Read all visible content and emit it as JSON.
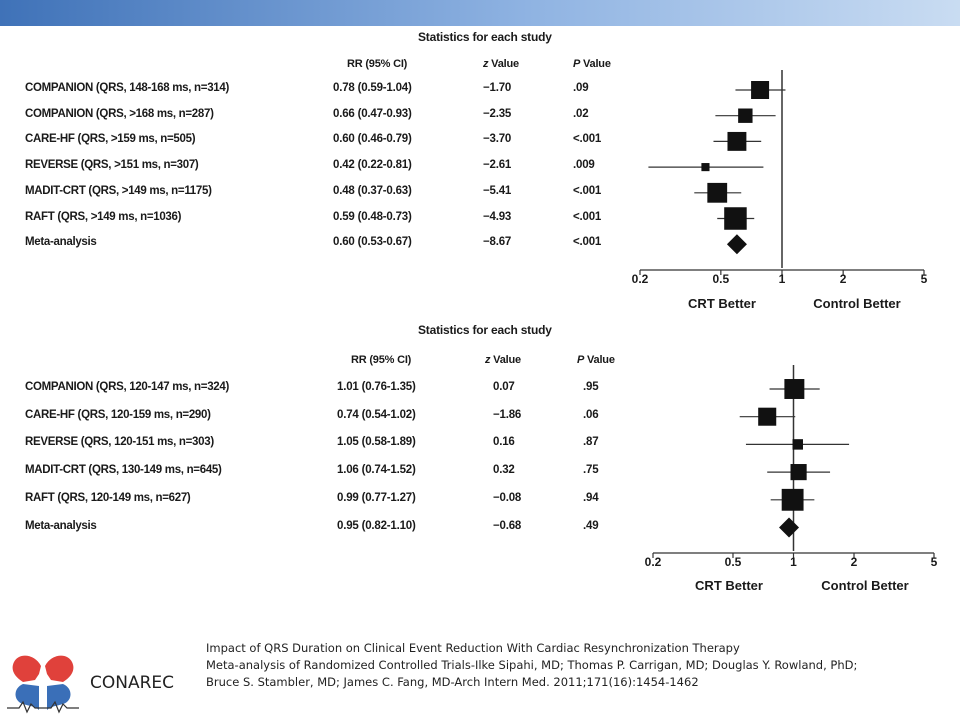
{
  "caption": {
    "line1": "Impact of QRS Duration on Clinical Event Reduction With Cardiac Resynchronization Therapy",
    "line2": "Meta-analysis of Randomized Controlled Trials-Ilke Sipahi, MD; Thomas P. Carrigan, MD; Douglas Y. Rowland, PhD;",
    "line3": "Bruce S. Stambler, MD; James C. Fang, MD-Arch Intern Med. 2011;171(16):1454-1462"
  },
  "brand": {
    "name": "CONAREC",
    "colors": {
      "red": "#e0413b",
      "blue": "#3a6fb8",
      "topbar": "#3f72b8"
    }
  },
  "chart_data": [
    {
      "type": "forest",
      "title": "Statistics for each study",
      "columns": {
        "rr": "RR (95% CI)",
        "z_italic": "z",
        "z_rest": " Value",
        "p_italic": "P",
        "p_rest": " Value"
      },
      "xscale": "log",
      "xlim": [
        0.2,
        5
      ],
      "ticks": [
        "0.2",
        "0.5",
        "1",
        "2",
        "5"
      ],
      "xlabel_left": "CRT Better",
      "xlabel_right": "Control Better",
      "rows": [
        {
          "label": "COMPANION (QRS, 148-168 ms, n=314)",
          "rr_text": "0.78 (0.59-1.04)",
          "z": "−1.70",
          "p": ".09",
          "rr": 0.78,
          "lo": 0.59,
          "hi": 1.04,
          "weight": 1.0
        },
        {
          "label": "COMPANION (QRS, >168 ms, n=287)",
          "rr_text": "0.66 (0.47-0.93)",
          "z": "−2.35",
          "p": ".02",
          "rr": 0.66,
          "lo": 0.47,
          "hi": 0.93,
          "weight": 0.8
        },
        {
          "label": "CARE-HF (QRS, >159 ms, n=505)",
          "rr_text": "0.60 (0.46-0.79)",
          "z": "−3.70",
          "p": "<.001",
          "rr": 0.6,
          "lo": 0.46,
          "hi": 0.79,
          "weight": 1.05
        },
        {
          "label": "REVERSE (QRS, >151 ms, n=307)",
          "rr_text": "0.42 (0.22-0.81)",
          "z": "−2.61",
          "p": ".009",
          "rr": 0.42,
          "lo": 0.22,
          "hi": 0.81,
          "weight": 0.45
        },
        {
          "label": "MADIT-CRT (QRS, >149 ms, n=1175)",
          "rr_text": "0.48 (0.37-0.63)",
          "z": "−5.41",
          "p": "<.001",
          "rr": 0.48,
          "lo": 0.37,
          "hi": 0.63,
          "weight": 1.1
        },
        {
          "label": "RAFT (QRS, >149 ms, n=1036)",
          "rr_text": "0.59 (0.48-0.73)",
          "z": "−4.93",
          "p": "<.001",
          "rr": 0.59,
          "lo": 0.48,
          "hi": 0.73,
          "weight": 1.25
        },
        {
          "label": "Meta-analysis",
          "rr_text": "0.60 (0.53-0.67)",
          "z": "−8.67",
          "p": "<.001",
          "rr": 0.6,
          "lo": 0.53,
          "hi": 0.67,
          "weight": 1.0,
          "summary": true
        }
      ]
    },
    {
      "type": "forest",
      "title": "Statistics for each study",
      "columns": {
        "rr": "RR (95% CI)",
        "z_italic": "z",
        "z_rest": " Value",
        "p_italic": "P",
        "p_rest": " Value"
      },
      "xscale": "log",
      "xlim": [
        0.2,
        5
      ],
      "ticks": [
        "0.2",
        "0.5",
        "1",
        "2",
        "5"
      ],
      "xlabel_left": "CRT Better",
      "xlabel_right": "Control Better",
      "rows": [
        {
          "label": "COMPANION (QRS, 120-147 ms, n=324)",
          "rr_text": "1.01 (0.76-1.35)",
          "z": "0.07",
          "p": ".95",
          "rr": 1.01,
          "lo": 0.76,
          "hi": 1.35,
          "weight": 1.05
        },
        {
          "label": "CARE-HF (QRS, 120-159 ms, n=290)",
          "rr_text": "0.74 (0.54-1.02)",
          "z": "−1.86",
          "p": ".06",
          "rr": 0.74,
          "lo": 0.54,
          "hi": 1.02,
          "weight": 0.95
        },
        {
          "label": "REVERSE (QRS, 120-151 ms, n=303)",
          "rr_text": "1.05 (0.58-1.89)",
          "z": "0.16",
          "p": ".87",
          "rr": 1.05,
          "lo": 0.58,
          "hi": 1.89,
          "weight": 0.55
        },
        {
          "label": "MADIT-CRT (QRS, 130-149 ms, n=645)",
          "rr_text": "1.06 (0.74-1.52)",
          "z": "0.32",
          "p": ".75",
          "rr": 1.06,
          "lo": 0.74,
          "hi": 1.52,
          "weight": 0.85
        },
        {
          "label": "RAFT (QRS, 120-149 ms, n=627)",
          "rr_text": "0.99 (0.77-1.27)",
          "z": "−0.08",
          "p": ".94",
          "rr": 0.99,
          "lo": 0.77,
          "hi": 1.27,
          "weight": 1.15
        },
        {
          "label": "Meta-analysis",
          "rr_text": "0.95 (0.82-1.10)",
          "z": "−0.68",
          "p": ".49",
          "rr": 0.95,
          "lo": 0.82,
          "hi": 1.1,
          "weight": 1.0,
          "summary": true
        }
      ]
    }
  ]
}
